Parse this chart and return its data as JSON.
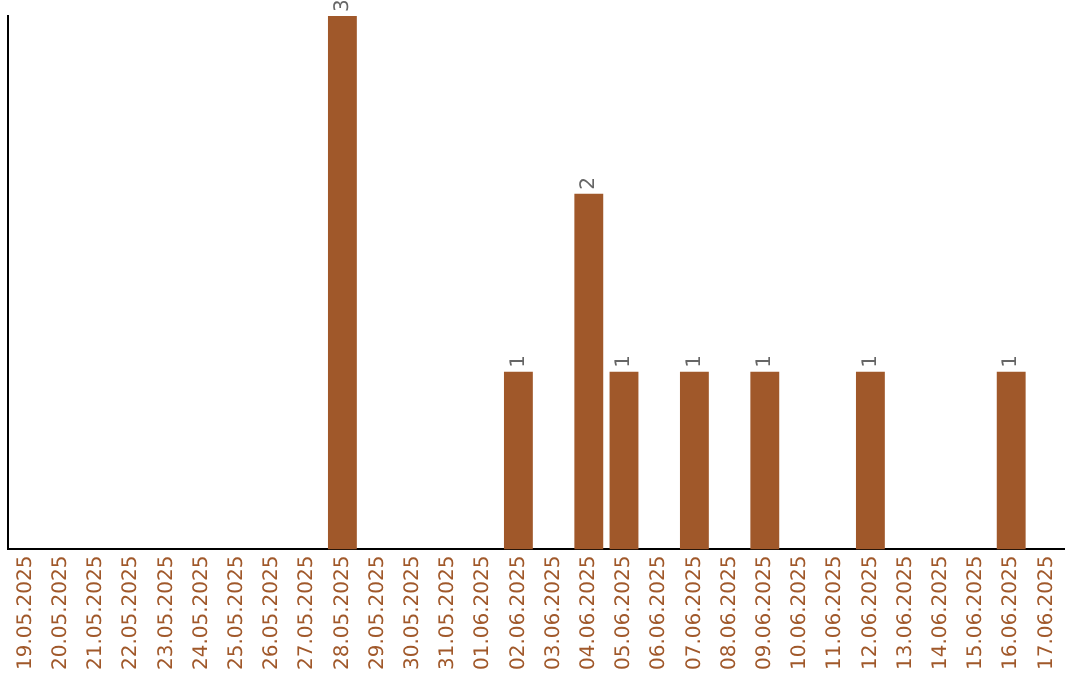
{
  "chart_data": {
    "type": "bar",
    "categories": [
      "19.05.2025",
      "20.05.2025",
      "21.05.2025",
      "22.05.2025",
      "23.05.2025",
      "24.05.2025",
      "25.05.2025",
      "26.05.2025",
      "27.05.2025",
      "28.05.2025",
      "29.05.2025",
      "30.05.2025",
      "31.05.2025",
      "01.06.2025",
      "02.06.2025",
      "03.06.2025",
      "04.06.2025",
      "05.06.2025",
      "06.06.2025",
      "07.06.2025",
      "08.06.2025",
      "09.06.2025",
      "10.06.2025",
      "11.06.2025",
      "12.06.2025",
      "13.06.2025",
      "14.06.2025",
      "15.06.2025",
      "16.06.2025",
      "17.06.2025"
    ],
    "values": [
      0,
      0,
      0,
      0,
      0,
      0,
      0,
      0,
      0,
      3,
      0,
      0,
      0,
      0,
      1,
      0,
      2,
      1,
      0,
      1,
      0,
      1,
      0,
      0,
      1,
      0,
      0,
      0,
      1,
      0
    ],
    "value_labels": [
      null,
      null,
      null,
      null,
      null,
      null,
      null,
      null,
      null,
      "3",
      null,
      null,
      null,
      null,
      "1",
      null,
      "2",
      "1",
      null,
      "1",
      null,
      "1",
      null,
      null,
      "1",
      null,
      null,
      null,
      "1",
      null
    ],
    "color": "#a0582a",
    "tick_labels": "x",
    "grid": false,
    "legend": false
  }
}
